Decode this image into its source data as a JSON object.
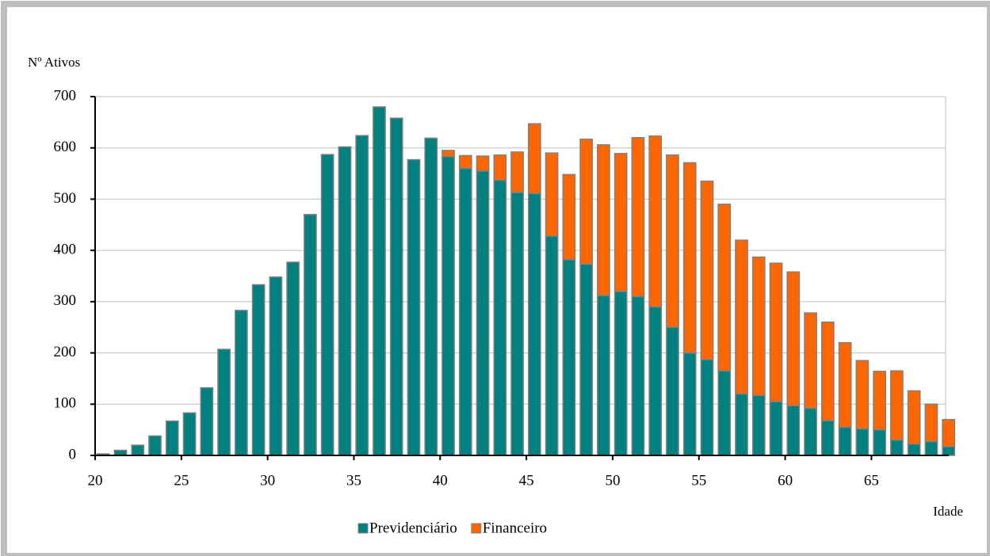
{
  "chart_data": {
    "type": "stacked_bar",
    "y_label": "Nº Ativos",
    "x_label": "Idade",
    "x": [
      20,
      21,
      22,
      23,
      24,
      25,
      26,
      27,
      28,
      29,
      30,
      31,
      32,
      33,
      34,
      35,
      36,
      37,
      38,
      39,
      40,
      41,
      42,
      43,
      44,
      45,
      46,
      47,
      48,
      49,
      50,
      51,
      52,
      53,
      54,
      55,
      56,
      57,
      58,
      59,
      60,
      61,
      62,
      63,
      64,
      65,
      66,
      67,
      68,
      69
    ],
    "series": [
      {
        "name": "Previdenciário",
        "color": "#008080",
        "values": [
          3,
          10,
          20,
          38,
          67,
          83,
          132,
          207,
          283,
          333,
          348,
          377,
          470,
          587,
          602,
          624,
          680,
          658,
          577,
          619,
          583,
          560,
          555,
          537,
          513,
          511,
          428,
          382,
          373,
          312,
          320,
          310,
          290,
          250,
          200,
          187,
          165,
          120,
          117,
          105,
          97,
          92,
          68,
          55,
          52,
          50,
          30,
          22,
          27,
          17
        ]
      },
      {
        "name": "Financeiro",
        "color": "#ff6600",
        "values": [
          0,
          0,
          0,
          0,
          0,
          0,
          0,
          0,
          0,
          0,
          0,
          0,
          0,
          0,
          0,
          0,
          0,
          0,
          0,
          0,
          12,
          25,
          29,
          49,
          79,
          136,
          162,
          166,
          244,
          294,
          269,
          310,
          333,
          336,
          371,
          348,
          325,
          300,
          270,
          270,
          261,
          186,
          192,
          165,
          133,
          114,
          135,
          104,
          73,
          53
        ]
      }
    ],
    "xlim": [
      20,
      69.3
    ],
    "xticks": [
      20,
      25,
      30,
      35,
      40,
      45,
      50,
      55,
      60,
      65
    ],
    "ylim": [
      0,
      700
    ],
    "yticks": [
      0,
      100,
      200,
      300,
      400,
      500,
      600,
      700
    ],
    "grid": true
  }
}
